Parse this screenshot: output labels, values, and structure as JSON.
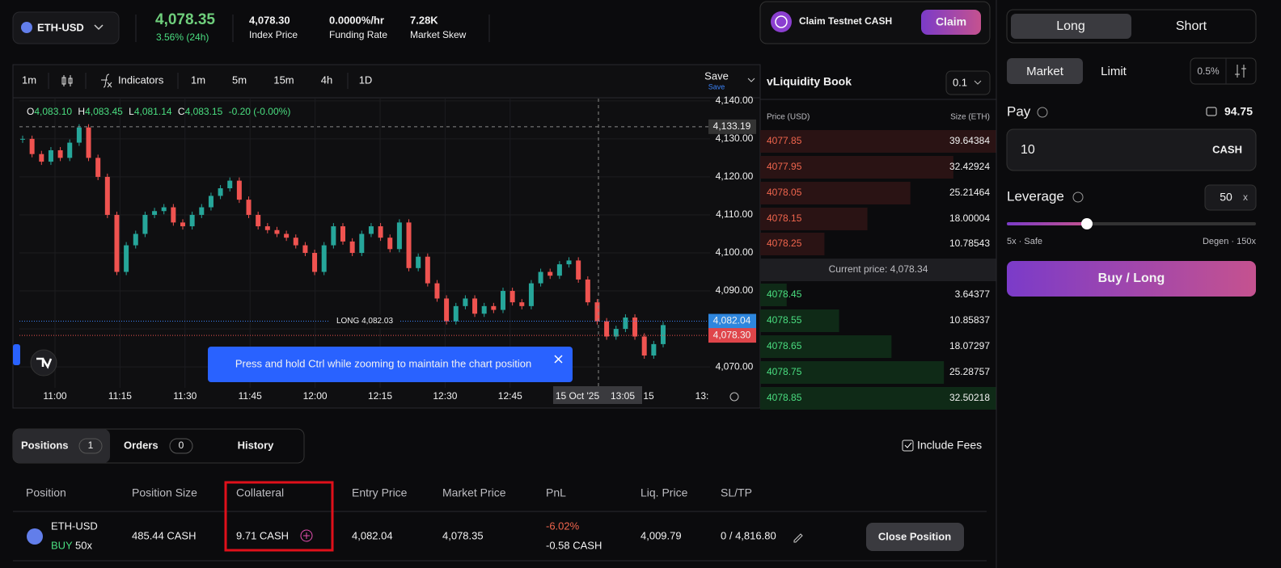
{
  "header": {
    "symbol": "ETH-USD",
    "price": "4,078.35",
    "change": "3.56% (24h)",
    "stats": [
      {
        "value": "4,078.30",
        "label": "Index Price"
      },
      {
        "value": "0.0000%/hr",
        "label": "Funding Rate"
      },
      {
        "value": "7.28K",
        "label": "Market Skew"
      }
    ],
    "claim_text": "Claim Testnet CASH",
    "claim_button": "Claim"
  },
  "toolbar": {
    "items": [
      "1m",
      "Indicators",
      "1m",
      "5m",
      "15m",
      "4h",
      "1D"
    ],
    "save": "Save",
    "save_sub": "Save"
  },
  "chart": {
    "type": "candlestick",
    "legend": {
      "o_label": "O",
      "o": "4,083.10",
      "h_label": "H",
      "h": "4,083.45",
      "l_label": "L",
      "l": "4,081.14",
      "c_label": "C",
      "c": "4,083.15",
      "change": "-0.20 (-0.00%)"
    },
    "close": [
      4130,
      4126,
      4124,
      4127,
      4125,
      4129,
      4133,
      4125,
      4120,
      4110,
      4095,
      4102,
      4105,
      4110,
      4111,
      4112,
      4108,
      4107,
      4110,
      4112,
      4115,
      4117,
      4119,
      4114,
      4110,
      4107,
      4106,
      4105,
      4104,
      4102,
      4100,
      4095,
      4102,
      4107,
      4103,
      4100,
      4105,
      4107,
      4104,
      4101,
      4108,
      4096,
      4099,
      4092,
      4088,
      4082,
      4086,
      4088,
      4084,
      4086,
      4085,
      4090,
      4087,
      4086,
      4092,
      4095,
      4094,
      4097,
      4098,
      4093,
      4087,
      4082,
      4078,
      4080,
      4083,
      4078,
      4073,
      4076,
      4081
    ],
    "up_color": "#26a69a",
    "down_color": "#ef5350",
    "ylim": [
      4064.5,
      4140.6
    ],
    "yticks": [
      {
        "value": 4070,
        "label": "4,070.00"
      },
      {
        "value": 4080,
        "label": "4,080.00"
      },
      {
        "value": 4090,
        "label": "4,090.00"
      },
      {
        "value": 4100,
        "label": "4,100.00"
      },
      {
        "value": 4110,
        "label": "4,110.00"
      },
      {
        "value": 4120,
        "label": "4,120.00"
      },
      {
        "value": 4130,
        "label": "4,130.00"
      },
      {
        "value": 4140,
        "label": "4,140.00"
      }
    ],
    "xticks": [
      "11:00",
      "11:15",
      "11:30",
      "11:45",
      "12:00",
      "12:15",
      "12:30",
      "12:45"
    ],
    "clipped_labels": [
      "15",
      "13:"
    ],
    "crosshair": {
      "price": {
        "value": 4133.19,
        "label": "4,133.19"
      },
      "date": "15 Oct '25",
      "time": "13:05"
    },
    "position_line": {
      "value": 4082.03,
      "label": "LONG 4,082.03"
    },
    "entry_badge": {
      "value": 4082.04,
      "label": "4,082.04"
    },
    "mark_badge": {
      "value": 4078.3,
      "label": "4,078.30"
    },
    "toast": "Press and hold Ctrl while zooming to maintain the chart position"
  },
  "orderbook": {
    "title": "vLiquidity Book",
    "step": "0.1",
    "price_header": "Price (USD)",
    "size_header": "Size (ETH)",
    "asks": [
      {
        "price": 4077.85,
        "size": 39.64384
      },
      {
        "price": 4077.95,
        "size": 32.42924
      },
      {
        "price": 4078.05,
        "size": 25.21464
      },
      {
        "price": 4078.15,
        "size": 18.00004
      },
      {
        "price": 4078.25,
        "size": 10.78543
      }
    ],
    "current": "Current price: 4,078.34",
    "bids": [
      {
        "price": 4078.45,
        "size": 3.64377
      },
      {
        "price": 4078.55,
        "size": 10.85837
      },
      {
        "price": 4078.65,
        "size": 18.07297
      },
      {
        "price": 4078.75,
        "size": 25.28757
      },
      {
        "price": 4078.85,
        "size": 32.50218
      }
    ]
  },
  "order_form": {
    "tabs": [
      "Long",
      "Short"
    ],
    "order_types": [
      "Market",
      "Limit"
    ],
    "slippage": "0.5%",
    "pay_label": "Pay",
    "balance": "94.75",
    "pay_amount": "10",
    "pay_unit": "CASH",
    "leverage_label": "Leverage",
    "leverage": "50",
    "leverage_unit": "x",
    "min_label": "5x · Safe",
    "max_label": "Degen · 150x",
    "submit": "Buy / Long"
  },
  "positions": {
    "tabs": [
      {
        "label": "Positions",
        "count": "1"
      },
      {
        "label": "Orders",
        "count": "0"
      },
      {
        "label": "History"
      }
    ],
    "include_fees": "Include Fees",
    "columns": [
      "Position",
      "Position Size",
      "Collateral",
      "Entry Price",
      "Market Price",
      "PnL",
      "Liq. Price",
      "SL/TP"
    ],
    "rows": [
      {
        "market": "ETH-USD",
        "side": "BUY",
        "leverage": "50x",
        "size": "485.44 CASH",
        "collateral": "9.71 CASH",
        "entry": "4,082.04",
        "market_price": "4,078.35",
        "pnl_pct": "-6.02%",
        "pnl": "-0.58 CASH",
        "liq": "4,009.79",
        "sltp": "0 / 4,816.80",
        "action": "Close Position"
      }
    ]
  }
}
